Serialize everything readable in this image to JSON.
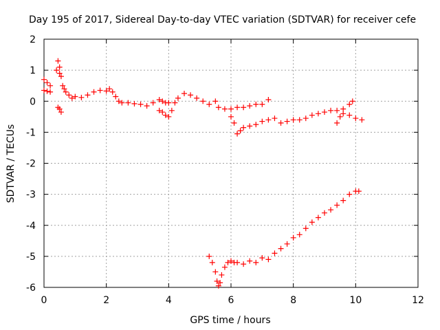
{
  "chart_data": {
    "type": "scatter",
    "title": "Day 195 of 2017, Sidereal Day-to-day VTEC variation (SDTVAR) for receiver cefe",
    "xlabel": "GPS time / hours",
    "ylabel": "SDTVAR / TECUs",
    "xlim": [
      0,
      12
    ],
    "ylim": [
      -6,
      2
    ],
    "xticks": [
      0,
      2,
      4,
      6,
      8,
      10,
      12
    ],
    "yticks": [
      -6,
      -5,
      -4,
      -3,
      -2,
      -1,
      0,
      1,
      2
    ],
    "grid": true,
    "marker": "plus",
    "colors": {
      "series": "#ff0000",
      "frame": "#000000",
      "grid": "#a0a0a0"
    },
    "series": [
      {
        "name": "upper",
        "x": [
          0.0,
          0.1,
          0.2,
          0.0,
          0.1,
          0.2,
          0.4,
          0.45,
          0.5,
          0.5,
          0.55,
          0.6,
          0.65,
          0.7,
          0.8,
          0.9,
          1.0,
          1.2,
          1.4,
          1.6,
          1.8,
          2.0,
          2.1,
          2.2,
          2.3,
          2.4,
          2.5,
          2.7,
          2.9,
          3.1,
          3.3,
          3.5,
          3.7,
          3.8,
          3.9,
          4.0,
          3.7,
          3.8,
          3.9,
          4.0,
          4.1,
          4.2,
          4.3,
          4.5,
          4.7,
          4.9,
          5.1,
          5.3,
          5.5,
          5.6,
          5.8,
          6.0,
          6.2,
          6.4,
          6.6,
          6.8,
          7.0,
          7.2,
          6.0,
          6.1,
          6.2,
          6.3,
          6.4,
          6.6,
          6.8,
          7.0,
          7.2,
          7.4,
          7.6,
          7.8,
          8.0,
          8.2,
          8.4,
          8.6,
          8.8,
          9.0,
          9.2,
          9.4,
          9.6,
          9.8,
          9.9,
          9.4,
          9.5,
          9.6,
          9.8,
          10.0,
          10.2,
          0.45,
          0.5,
          0.55
        ],
        "y": [
          0.7,
          0.6,
          0.5,
          0.35,
          0.32,
          0.3,
          1.0,
          1.3,
          1.1,
          0.9,
          0.8,
          0.5,
          0.4,
          0.3,
          0.2,
          0.1,
          0.15,
          0.12,
          0.2,
          0.3,
          0.35,
          0.33,
          0.4,
          0.3,
          0.15,
          0.0,
          -0.05,
          -0.05,
          -0.08,
          -0.1,
          -0.15,
          -0.05,
          0.05,
          0.0,
          -0.05,
          -0.05,
          -0.3,
          -0.35,
          -0.45,
          -0.5,
          -0.3,
          -0.05,
          0.1,
          0.25,
          0.2,
          0.1,
          0.0,
          -0.1,
          0.0,
          -0.2,
          -0.25,
          -0.25,
          -0.2,
          -0.2,
          -0.15,
          -0.1,
          -0.1,
          0.05,
          -0.5,
          -0.7,
          -1.05,
          -0.95,
          -0.85,
          -0.8,
          -0.75,
          -0.65,
          -0.6,
          -0.55,
          -0.7,
          -0.65,
          -0.6,
          -0.6,
          -0.55,
          -0.45,
          -0.4,
          -0.35,
          -0.3,
          -0.3,
          -0.25,
          -0.1,
          0.0,
          -0.7,
          -0.5,
          -0.4,
          -0.45,
          -0.55,
          -0.6,
          -0.2,
          -0.25,
          -0.35
        ]
      },
      {
        "name": "lower",
        "x": [
          5.3,
          5.4,
          5.5,
          5.55,
          5.6,
          5.65,
          5.7,
          5.8,
          5.9,
          6.0,
          6.1,
          6.2,
          6.4,
          6.6,
          6.8,
          7.0,
          7.2,
          7.4,
          7.6,
          7.8,
          8.0,
          8.2,
          8.4,
          8.6,
          8.8,
          9.0,
          9.2,
          9.4,
          9.6,
          9.8,
          10.0,
          10.1
        ],
        "y": [
          -5.0,
          -5.2,
          -5.5,
          -5.8,
          -5.95,
          -5.85,
          -5.6,
          -5.35,
          -5.2,
          -5.15,
          -5.2,
          -5.2,
          -5.25,
          -5.15,
          -5.2,
          -5.05,
          -5.1,
          -4.9,
          -4.75,
          -4.6,
          -4.4,
          -4.3,
          -4.1,
          -3.9,
          -3.75,
          -3.6,
          -3.5,
          -3.35,
          -3.2,
          -3.0,
          -2.9,
          -2.9
        ]
      }
    ]
  }
}
